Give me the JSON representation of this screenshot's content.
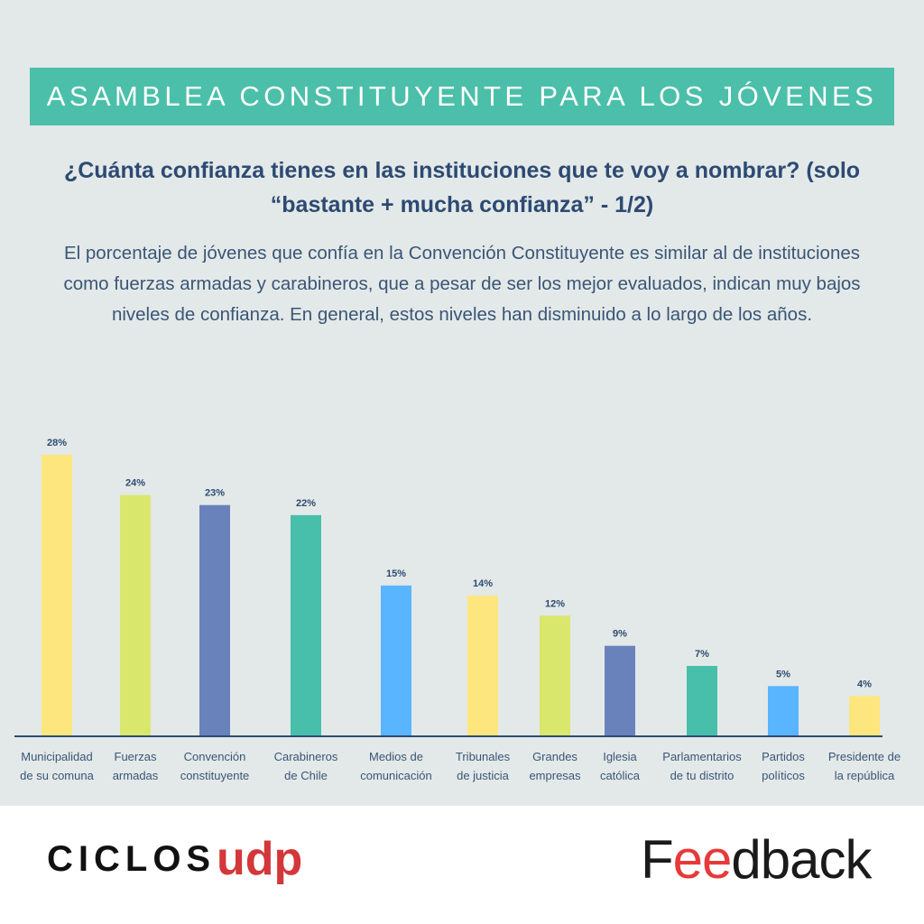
{
  "header": {
    "banner": "ASAMBLEA CONSTITUYENTE PARA LOS JÓVENES",
    "question": "¿Cuánta confianza tienes en las instituciones que te voy a nombrar? (solo “bastante + mucha confianza” - 1/2)",
    "description": "El porcentaje de jóvenes que confía en la Convención Constituyente es similar al de instituciones como fuerzas armadas y carabineros, que a pesar de ser los mejor evaluados, indican muy bajos niveles de confianza. En general, estos niveles han disminuido a lo largo de los años."
  },
  "colors": {
    "banner_bg": "#4bbfa9",
    "title_text": "#2d4a73",
    "body_text": "#3a5577",
    "panel_bg": "#e3e9e8",
    "axis": "#2d4a73",
    "udp_red": "#d4373a",
    "feedback_red": "#e63a3a"
  },
  "chart_data": {
    "type": "bar",
    "categories": [
      [
        "Municipalidad",
        "de su comuna"
      ],
      [
        "Fuerzas",
        "armadas"
      ],
      [
        "Convención",
        "constituyente"
      ],
      [
        "Carabineros",
        "de Chile"
      ],
      [
        "Medios de",
        "comunicación"
      ],
      [
        "Tribunales",
        "de justicia"
      ],
      [
        "Grandes",
        "empresas"
      ],
      [
        "Iglesia",
        "católica"
      ],
      [
        "Parlamentarios",
        "de tu distrito"
      ],
      [
        "Partidos",
        "políticos"
      ],
      [
        "Presidente de",
        "la república"
      ]
    ],
    "values": [
      28,
      24,
      23,
      22,
      15,
      14,
      12,
      9,
      7,
      5,
      4
    ],
    "value_labels": [
      "28%",
      "24%",
      "23%",
      "22%",
      "15%",
      "14%",
      "12%",
      "9%",
      "7%",
      "5%",
      "4%"
    ],
    "bar_colors": [
      "#fde67e",
      "#dae76d",
      "#6a82bc",
      "#48bfab",
      "#59b5ff",
      "#fde67e",
      "#dae76d",
      "#6a82bc",
      "#48bfab",
      "#59b5ff",
      "#fde67e"
    ],
    "ylim": [
      0,
      28
    ]
  },
  "footer": {
    "logo_ciclos": "CICLOS",
    "logo_udp": "udp",
    "logo_feedback_pre": "F",
    "logo_feedback_ee": "ee",
    "logo_feedback_post": "dback"
  }
}
